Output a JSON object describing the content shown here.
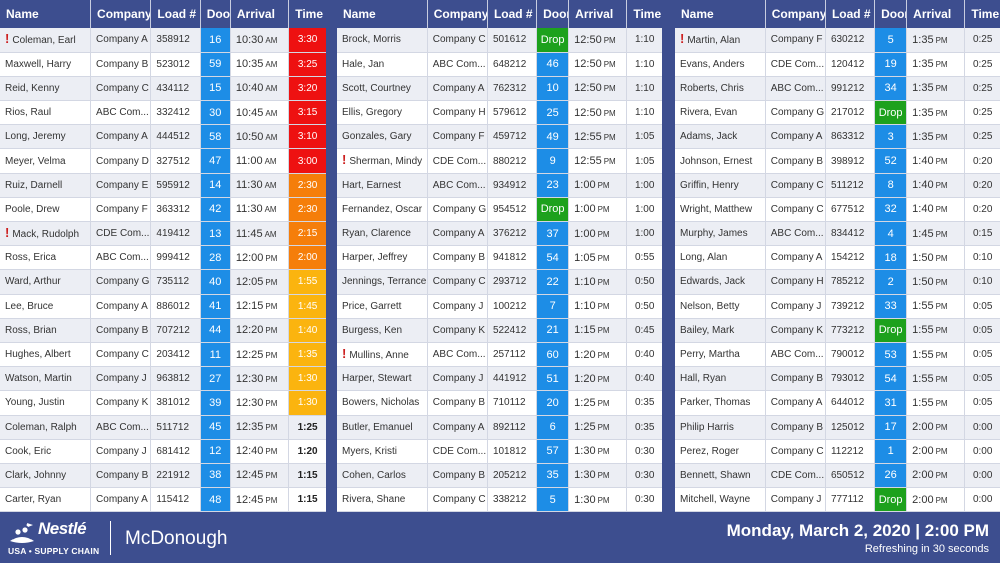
{
  "headers": {
    "name": "Name",
    "company": "Company",
    "load": "Load #",
    "door": "Door",
    "arrival": "Arrival",
    "time": "Time"
  },
  "panels": [
    {
      "rows": [
        {
          "name": "Coleman, Earl",
          "flag": true,
          "company": "Company A",
          "load": "358912",
          "door": "16",
          "arrival": "10:30",
          "ampm": "AM",
          "time": "3:30",
          "level": "red"
        },
        {
          "name": "Maxwell, Harry",
          "company": "Company B",
          "load": "523012",
          "door": "59",
          "arrival": "10:35",
          "ampm": "AM",
          "time": "3:25",
          "level": "red"
        },
        {
          "name": "Reid, Kenny",
          "company": "Company C",
          "load": "434112",
          "door": "15",
          "arrival": "10:40",
          "ampm": "AM",
          "time": "3:20",
          "level": "red"
        },
        {
          "name": "Rios, Raul",
          "company": "ABC Com...",
          "load": "332412",
          "door": "30",
          "arrival": "10:45",
          "ampm": "AM",
          "time": "3:15",
          "level": "red"
        },
        {
          "name": "Long, Jeremy",
          "company": "Company A",
          "load": "444512",
          "door": "58",
          "arrival": "10:50",
          "ampm": "AM",
          "time": "3:10",
          "level": "red"
        },
        {
          "name": "Meyer, Velma",
          "company": "Company D",
          "load": "327512",
          "door": "47",
          "arrival": "11:00",
          "ampm": "AM",
          "time": "3:00",
          "level": "red"
        },
        {
          "name": "Ruiz, Darnell",
          "company": "Company E",
          "load": "595912",
          "door": "14",
          "arrival": "11:30",
          "ampm": "AM",
          "time": "2:30",
          "level": "orange"
        },
        {
          "name": "Poole, Drew",
          "company": "Company F",
          "load": "363312",
          "door": "42",
          "arrival": "11:30",
          "ampm": "AM",
          "time": "2:30",
          "level": "orange"
        },
        {
          "name": "Mack, Rudolph",
          "flag": true,
          "company": "CDE Com...",
          "load": "419412",
          "door": "13",
          "arrival": "11:45",
          "ampm": "AM",
          "time": "2:15",
          "level": "orange"
        },
        {
          "name": "Ross, Erica",
          "company": "ABC Com...",
          "load": "999412",
          "door": "28",
          "arrival": "12:00",
          "ampm": "PM",
          "time": "2:00",
          "level": "orange"
        },
        {
          "name": "Ward, Arthur",
          "company": "Company G",
          "load": "735112",
          "door": "40",
          "arrival": "12:05",
          "ampm": "PM",
          "time": "1:55",
          "level": "yellow"
        },
        {
          "name": "Lee, Bruce",
          "company": "Company A",
          "load": "886012",
          "door": "41",
          "arrival": "12:15",
          "ampm": "PM",
          "time": "1:45",
          "level": "yellow"
        },
        {
          "name": "Ross, Brian",
          "company": "Company B",
          "load": "707212",
          "door": "44",
          "arrival": "12:20",
          "ampm": "PM",
          "time": "1:40",
          "level": "yellow"
        },
        {
          "name": "Hughes, Albert",
          "company": "Company C",
          "load": "203412",
          "door": "11",
          "arrival": "12:25",
          "ampm": "PM",
          "time": "1:35",
          "level": "yellow"
        },
        {
          "name": "Watson, Martin",
          "company": "Company J",
          "load": "963812",
          "door": "27",
          "arrival": "12:30",
          "ampm": "PM",
          "time": "1:30",
          "level": "yellow"
        },
        {
          "name": "Young, Justin",
          "company": "Company K",
          "load": "381012",
          "door": "39",
          "arrival": "12:30",
          "ampm": "PM",
          "time": "1:30",
          "level": "yellow"
        },
        {
          "name": "Coleman, Ralph",
          "company": "ABC Com...",
          "load": "511712",
          "door": "45",
          "arrival": "12:35",
          "ampm": "PM",
          "time": "1:25",
          "level": "bold"
        },
        {
          "name": "Cook, Eric",
          "company": "Company J",
          "load": "681412",
          "door": "12",
          "arrival": "12:40",
          "ampm": "PM",
          "time": "1:20",
          "level": "bold"
        },
        {
          "name": "Clark, Johnny",
          "company": "Company B",
          "load": "221912",
          "door": "38",
          "arrival": "12:45",
          "ampm": "PM",
          "time": "1:15",
          "level": "bold"
        },
        {
          "name": "Carter, Ryan",
          "company": "Company A",
          "load": "115412",
          "door": "48",
          "arrival": "12:45",
          "ampm": "PM",
          "time": "1:15",
          "level": "bold"
        }
      ]
    },
    {
      "rows": [
        {
          "name": "Brock, Morris",
          "company": "Company C",
          "load": "501612",
          "door": "Drop",
          "arrival": "12:50",
          "ampm": "PM",
          "time": "1:10"
        },
        {
          "name": "Hale, Jan",
          "company": "ABC Com...",
          "load": "648212",
          "door": "46",
          "arrival": "12:50",
          "ampm": "PM",
          "time": "1:10"
        },
        {
          "name": "Scott, Courtney",
          "company": "Company A",
          "load": "762312",
          "door": "10",
          "arrival": "12:50",
          "ampm": "PM",
          "time": "1:10"
        },
        {
          "name": "Ellis, Gregory",
          "company": "Company H",
          "load": "579612",
          "door": "25",
          "arrival": "12:50",
          "ampm": "PM",
          "time": "1:10"
        },
        {
          "name": "Gonzales, Gary",
          "company": "Company F",
          "load": "459712",
          "door": "49",
          "arrival": "12:55",
          "ampm": "PM",
          "time": "1:05"
        },
        {
          "name": "Sherman, Mindy",
          "flag": true,
          "company": "CDE Com...",
          "load": "880212",
          "door": "9",
          "arrival": "12:55",
          "ampm": "PM",
          "time": "1:05"
        },
        {
          "name": "Hart, Earnest",
          "company": "ABC Com...",
          "load": "934912",
          "door": "23",
          "arrival": "1:00",
          "ampm": "PM",
          "time": "1:00"
        },
        {
          "name": "Fernandez, Oscar",
          "company": "Company G",
          "load": "954512",
          "door": "Drop",
          "arrival": "1:00",
          "ampm": "PM",
          "time": "1:00"
        },
        {
          "name": "Ryan, Clarence",
          "company": "Company A",
          "load": "376212",
          "door": "37",
          "arrival": "1:00",
          "ampm": "PM",
          "time": "1:00"
        },
        {
          "name": "Harper, Jeffrey",
          "company": "Company B",
          "load": "941812",
          "door": "54",
          "arrival": "1:05",
          "ampm": "PM",
          "time": "0:55"
        },
        {
          "name": "Jennings, Terrance",
          "company": "Company C",
          "load": "293712",
          "door": "22",
          "arrival": "1:10",
          "ampm": "PM",
          "time": "0:50"
        },
        {
          "name": "Price, Garrett",
          "company": "Company J",
          "load": "100212",
          "door": "7",
          "arrival": "1:10",
          "ampm": "PM",
          "time": "0:50"
        },
        {
          "name": "Burgess, Ken",
          "company": "Company K",
          "load": "522412",
          "door": "21",
          "arrival": "1:15",
          "ampm": "PM",
          "time": "0:45"
        },
        {
          "name": "Mullins, Anne",
          "flag": true,
          "company": "ABC Com...",
          "load": "257112",
          "door": "60",
          "arrival": "1:20",
          "ampm": "PM",
          "time": "0:40"
        },
        {
          "name": "Harper, Stewart",
          "company": "Company J",
          "load": "441912",
          "door": "51",
          "arrival": "1:20",
          "ampm": "PM",
          "time": "0:40"
        },
        {
          "name": "Bowers, Nicholas",
          "company": "Company B",
          "load": "710112",
          "door": "20",
          "arrival": "1:25",
          "ampm": "PM",
          "time": "0:35"
        },
        {
          "name": "Butler, Emanuel",
          "company": "Company A",
          "load": "892112",
          "door": "6",
          "arrival": "1:25",
          "ampm": "PM",
          "time": "0:35"
        },
        {
          "name": "Myers, Kristi",
          "company": "CDE Com...",
          "load": "101812",
          "door": "57",
          "arrival": "1:30",
          "ampm": "PM",
          "time": "0:30"
        },
        {
          "name": "Cohen, Carlos",
          "company": "Company B",
          "load": "205212",
          "door": "35",
          "arrival": "1:30",
          "ampm": "PM",
          "time": "0:30"
        },
        {
          "name": "Rivera, Shane",
          "company": "Company C",
          "load": "338212",
          "door": "5",
          "arrival": "1:30",
          "ampm": "PM",
          "time": "0:30"
        }
      ]
    },
    {
      "rows": [
        {
          "name": "Martin, Alan",
          "flag": true,
          "company": "Company F",
          "load": "630212",
          "door": "5",
          "arrival": "1:35",
          "ampm": "PM",
          "time": "0:25"
        },
        {
          "name": "Evans, Anders",
          "company": "CDE Com...",
          "load": "120412",
          "door": "19",
          "arrival": "1:35",
          "ampm": "PM",
          "time": "0:25"
        },
        {
          "name": "Roberts, Chris",
          "company": "ABC Com...",
          "load": "991212",
          "door": "34",
          "arrival": "1:35",
          "ampm": "PM",
          "time": "0:25"
        },
        {
          "name": "Rivera, Evan",
          "company": "Company G",
          "load": "217012",
          "door": "Drop",
          "arrival": "1:35",
          "ampm": "PM",
          "time": "0:25"
        },
        {
          "name": "Adams, Jack",
          "company": "Company A",
          "load": "863312",
          "door": "3",
          "arrival": "1:35",
          "ampm": "PM",
          "time": "0:25"
        },
        {
          "name": "Johnson, Ernest",
          "company": "Company B",
          "load": "398912",
          "door": "52",
          "arrival": "1:40",
          "ampm": "PM",
          "time": "0:20"
        },
        {
          "name": "Griffin, Henry",
          "company": "Company C",
          "load": "511212",
          "door": "8",
          "arrival": "1:40",
          "ampm": "PM",
          "time": "0:20"
        },
        {
          "name": "Wright, Matthew",
          "company": "Company C",
          "load": "677512",
          "door": "32",
          "arrival": "1:40",
          "ampm": "PM",
          "time": "0:20"
        },
        {
          "name": "Murphy, James",
          "company": "ABC Com...",
          "load": "834412",
          "door": "4",
          "arrival": "1:45",
          "ampm": "PM",
          "time": "0:15"
        },
        {
          "name": "Long, Alan",
          "company": "Company A",
          "load": "154212",
          "door": "18",
          "arrival": "1:50",
          "ampm": "PM",
          "time": "0:10"
        },
        {
          "name": "Edwards, Jack",
          "company": "Company H",
          "load": "785212",
          "door": "2",
          "arrival": "1:50",
          "ampm": "PM",
          "time": "0:10"
        },
        {
          "name": "Nelson, Betty",
          "company": "Company J",
          "load": "739212",
          "door": "33",
          "arrival": "1:55",
          "ampm": "PM",
          "time": "0:05"
        },
        {
          "name": "Bailey, Mark",
          "company": "Company K",
          "load": "773212",
          "door": "Drop",
          "arrival": "1:55",
          "ampm": "PM",
          "time": "0:05"
        },
        {
          "name": "Perry, Martha",
          "company": "ABC Com...",
          "load": "790012",
          "door": "53",
          "arrival": "1:55",
          "ampm": "PM",
          "time": "0:05"
        },
        {
          "name": "Hall, Ryan",
          "company": "Company B",
          "load": "793012",
          "door": "54",
          "arrival": "1:55",
          "ampm": "PM",
          "time": "0:05"
        },
        {
          "name": "Parker, Thomas",
          "company": "Company A",
          "load": "644012",
          "door": "31",
          "arrival": "1:55",
          "ampm": "PM",
          "time": "0:05"
        },
        {
          "name": "Philip Harris",
          "company": "Company B",
          "load": "125012",
          "door": "17",
          "arrival": "2:00",
          "ampm": "PM",
          "time": "0:00"
        },
        {
          "name": "Perez, Roger",
          "company": "Company C",
          "load": "112212",
          "door": "1",
          "arrival": "2:00",
          "ampm": "PM",
          "time": "0:00"
        },
        {
          "name": "Bennett, Shawn",
          "company": "CDE Com...",
          "load": "650512",
          "door": "26",
          "arrival": "2:00",
          "ampm": "PM",
          "time": "0:00"
        },
        {
          "name": "Mitchell, Wayne",
          "company": "Company J",
          "load": "777112",
          "door": "Drop",
          "arrival": "2:00",
          "ampm": "PM",
          "time": "0:00"
        }
      ]
    }
  ],
  "footer": {
    "logo_name": "Nestlé",
    "logo_sub": "USA • SUPPLY CHAIN",
    "location": "McDonough",
    "datetime": "Monday, March 2, 2020 | 2:00 PM",
    "refresh": "Refreshing in 30 seconds"
  },
  "colors": {
    "header": "#3d4e8f",
    "door": "#1d8de6",
    "drop": "#1da11d",
    "red": "#ee1111",
    "orange": "#f57e0a",
    "yellow": "#fbb40f",
    "flag": "#cc1f1f"
  }
}
